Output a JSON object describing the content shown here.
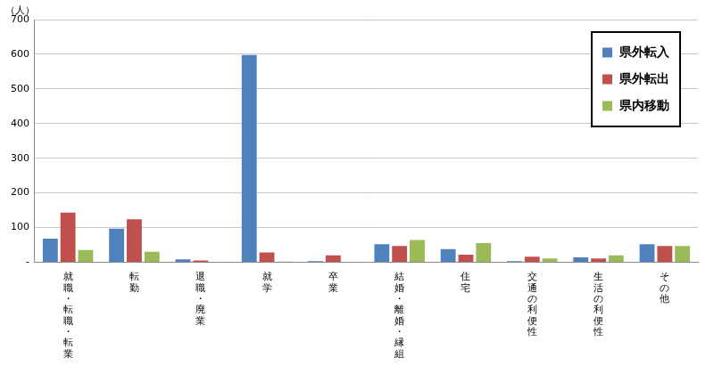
{
  "chart_data": {
    "type": "bar",
    "y_label": "（人）",
    "categories": [
      "就職・転職・転業",
      "転勤",
      "退職・廃業",
      "就学",
      "卒業",
      "結婚・離婚・縁組",
      "住宅",
      "交通の利便性",
      "生活の利便性",
      "その他"
    ],
    "series": [
      {
        "name": "県外転入",
        "color": "#4f81bd",
        "values": [
          68,
          97,
          8,
          598,
          3,
          52,
          38,
          3,
          14,
          52
        ]
      },
      {
        "name": "県外転出",
        "color": "#c0504d",
        "values": [
          143,
          124,
          5,
          28,
          20,
          47,
          22,
          16,
          11,
          47
        ]
      },
      {
        "name": "県内移動",
        "color": "#9bbb59",
        "values": [
          35,
          30,
          1,
          2,
          1,
          64,
          55,
          11,
          20,
          47
        ]
      }
    ],
    "ylim": [
      0,
      700
    ],
    "yticks": [
      {
        "value": 0,
        "label": "-"
      },
      100,
      200,
      300,
      400,
      500,
      600,
      700
    ],
    "grid": true,
    "legend": "top-right"
  }
}
